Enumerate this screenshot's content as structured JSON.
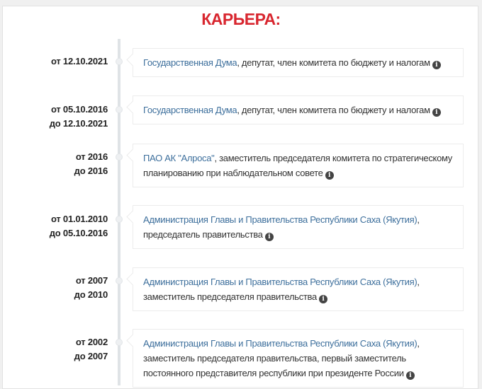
{
  "title": "КАРЬЕРА:",
  "items": [
    {
      "from": "от 12.10.2021",
      "to": "",
      "org": "Государственная Дума",
      "role": ", депутат, член комитета по бюджету и налогам"
    },
    {
      "from": "от 05.10.2016",
      "to": "до 12.10.2021",
      "org": "Государственная Дума",
      "role": ", депутат, член комитета по бюджету и налогам"
    },
    {
      "from": "от 2016",
      "to": "до 2016",
      "org": "ПАО АК \"Алроса\"",
      "role": ", заместитель председателя комитета по стратегическому планированию при наблюдательном совете"
    },
    {
      "from": "от 01.01.2010",
      "to": "до 05.10.2016",
      "org": "Администрация Главы и Правительства Республики Саха (Якутия)",
      "role": ", председатель правительства"
    },
    {
      "from": "от 2007",
      "to": "до 2010",
      "org": "Администрация Главы и Правительства Республики Саха (Якутия)",
      "role": ", заместитель председателя правительства"
    },
    {
      "from": "от 2002",
      "to": "до 2007",
      "org": "Администрация Главы и Правительства Республики Саха (Якутия)",
      "role": ", заместитель председателя правительства, первый заместитель постоянного представителя республики при президенте России"
    }
  ],
  "info_icon": "info-circle-icon"
}
